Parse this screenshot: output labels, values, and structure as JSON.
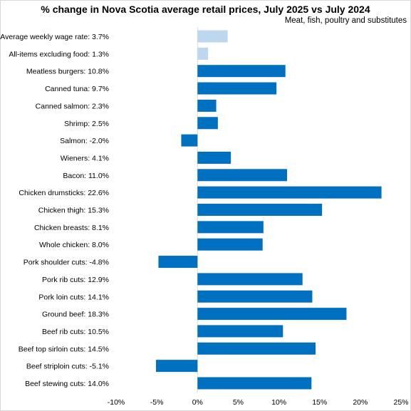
{
  "chart_data": {
    "type": "bar",
    "orientation": "horizontal",
    "title": "% change in Nova Scotia average retail prices, July 2025 vs July 2024",
    "subtitle": "Meat,  fish, poultry and substitutes",
    "xlim": [
      -10,
      25
    ],
    "xticks": [
      -10,
      -5,
      0,
      5,
      10,
      15,
      20,
      25
    ],
    "xtick_labels": [
      "-10%",
      "-5%",
      "0%",
      "5%",
      "10%",
      "15%",
      "20%",
      "25%"
    ],
    "grid": false,
    "categories": [
      "Average weekly wage rate: 3.7%",
      "All-items excluding food: 1.3%",
      "Meatless burgers: 10.8%",
      "Canned tuna: 9.7%",
      "Canned salmon: 2.3%",
      "Shrimp: 2.5%",
      "Salmon: -2.0%",
      "Wieners: 4.1%",
      "Bacon: 11.0%",
      "Chicken drumsticks: 22.6%",
      "Chicken thigh: 15.3%",
      "Chicken breasts: 8.1%",
      "Whole chicken: 8.0%",
      "Pork shoulder cuts: -4.8%",
      "Pork rib cuts: 12.9%",
      "Pork loin cuts: 14.1%",
      "Ground beef: 18.3%",
      "Beef rib cuts: 10.5%",
      "Beef top sirloin cuts: 14.5%",
      "Beef striploin cuts: -5.1%",
      "Beef stewing cuts: 14.0%"
    ],
    "values": [
      3.7,
      1.3,
      10.8,
      9.7,
      2.3,
      2.5,
      -2.0,
      4.1,
      11.0,
      22.6,
      15.3,
      8.1,
      8.0,
      -4.8,
      12.9,
      14.1,
      18.3,
      10.5,
      14.5,
      -5.1,
      14.0
    ],
    "colors": {
      "highlight": "#bdd7ee",
      "default": "#0070c0"
    },
    "highlight_count": 2
  }
}
